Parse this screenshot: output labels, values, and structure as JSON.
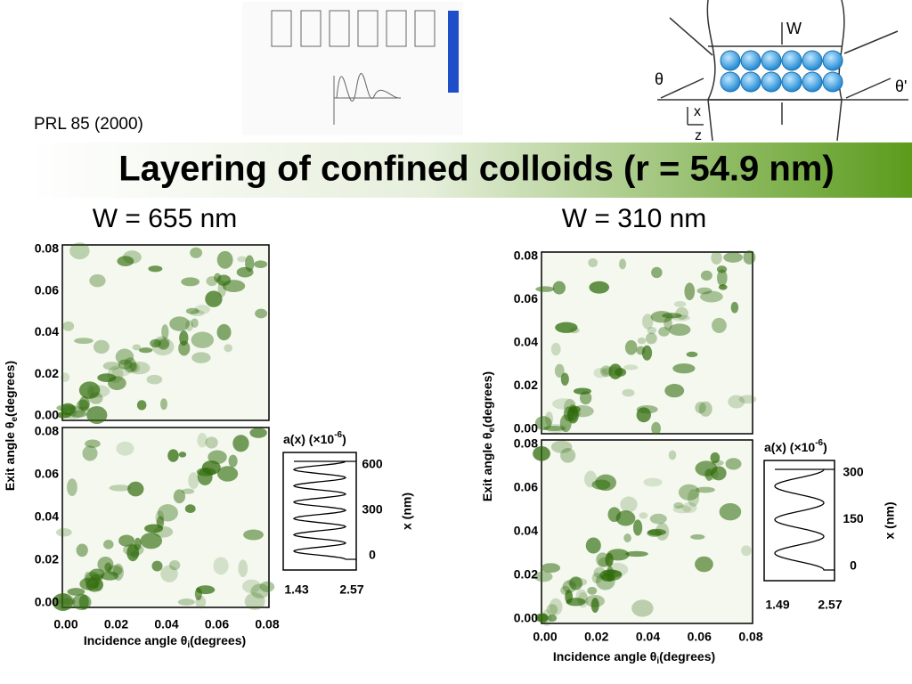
{
  "header": {
    "citation": "PRL 85 (2000)",
    "title": "Layering of confined colloids (r = 54.9 nm)"
  },
  "diagram": {
    "width_label": "W",
    "incidence_label": "θ",
    "exit_label": "θ'",
    "x_label": "x",
    "z_label": "z"
  },
  "panels": [
    {
      "title": "W = 655 nm",
      "y_label": {
        "text": "Exit angle θ",
        "sub": "e",
        "unit": "(degrees)"
      },
      "x_label": {
        "text": "Incidence angle θ",
        "sub": "i",
        "unit": "(degrees)"
      },
      "upper_yticks": [
        "0.00",
        "0.02",
        "0.04",
        "0.06",
        "0.08"
      ],
      "lower_yticks": [
        "0.00",
        "0.02",
        "0.04",
        "0.06",
        "0.08"
      ],
      "xticks": [
        "0.00",
        "0.02",
        "0.04",
        "0.06",
        "0.08"
      ],
      "profile": {
        "title": "a(x) (×10",
        "exponent": "-6",
        "close": ")",
        "axis_label": "x (nm)",
        "xticks": [
          "1.43",
          "2.57"
        ],
        "yticks": [
          "0",
          "300",
          "600"
        ]
      }
    },
    {
      "title": "W = 310 nm",
      "y_label": {
        "text": "Exit angle θ",
        "sub": "e",
        "unit": "(degrees)"
      },
      "x_label": {
        "text": "Incidence angle θ",
        "sub": "i",
        "unit": "(degrees)"
      },
      "upper_yticks": [
        "0.00",
        "0.02",
        "0.04",
        "0.06",
        "0.08"
      ],
      "lower_yticks": [
        "0.00",
        "0.02",
        "0.04",
        "0.06",
        "0.08"
      ],
      "xticks": [
        "0.00",
        "0.02",
        "0.04",
        "0.06",
        "0.08"
      ],
      "profile": {
        "title": "a(x) (×10",
        "exponent": "-6",
        "close": ")",
        "axis_label": "x (nm)",
        "xticks": [
          "1.49",
          "2.57"
        ],
        "yticks": [
          "0",
          "150",
          "300"
        ]
      }
    }
  ]
}
